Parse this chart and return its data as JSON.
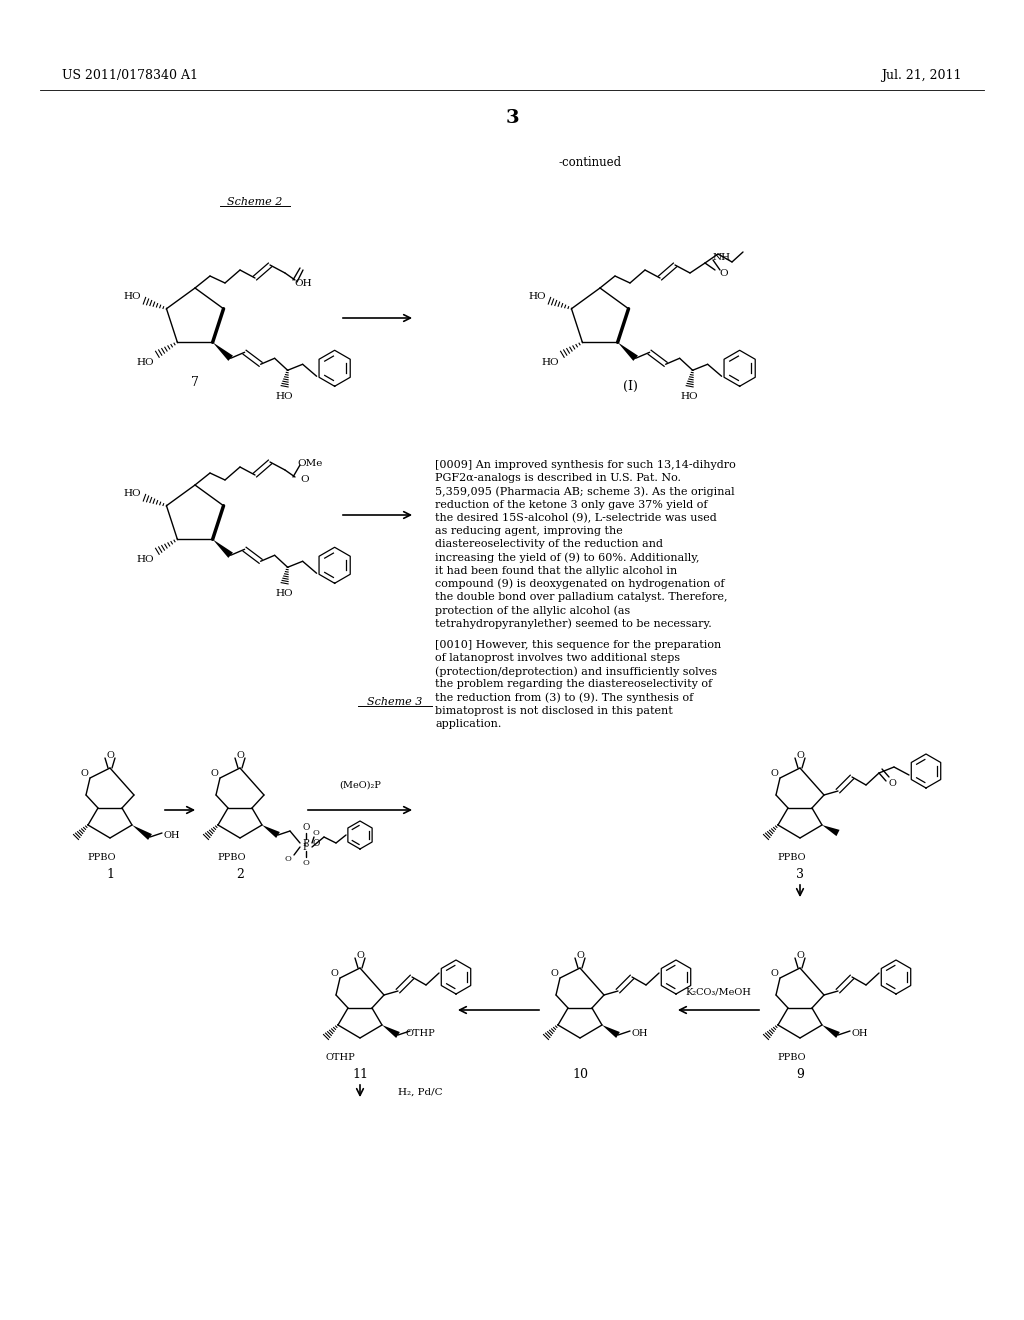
{
  "patent_number": "US 2011/0178340 A1",
  "patent_date": "Jul. 21, 2011",
  "page_number": "3",
  "continued_label": "-continued",
  "scheme2_label": "Scheme 2",
  "scheme3_label": "Scheme 3",
  "background_color": "#ffffff",
  "text_color": "#000000",
  "text_0009": "[0009]   An improved synthesis for such 13,14-dihydro PGF2α-analogs is described in U.S. Pat. No. 5,359,095 (Pharmacia AB; scheme 3). As the original reduction of the ketone 3 only gave 37% yield of the desired 15S-alcohol (9), L-selectride was used as reducing agent, improving the diastereoselectivity of the reduction and increasing the yield of (9) to 60%. Additionally, it had been found that the allylic alcohol in compound (9) is deoxygenated on hydrogenation of the double bond over palladium catalyst. Therefore, protection of the allylic alcohol (as tetrahydropyranylether) seemed to be necessary.",
  "text_0010": "[0010]   However, this sequence for the preparation of latanoprost involves two additional steps (protection/deprotection) and insufficiently solves the problem regarding the diastereoselectivity of the reduction from (3) to (9). The synthesis of bimatoprost is not disclosed in this patent application."
}
